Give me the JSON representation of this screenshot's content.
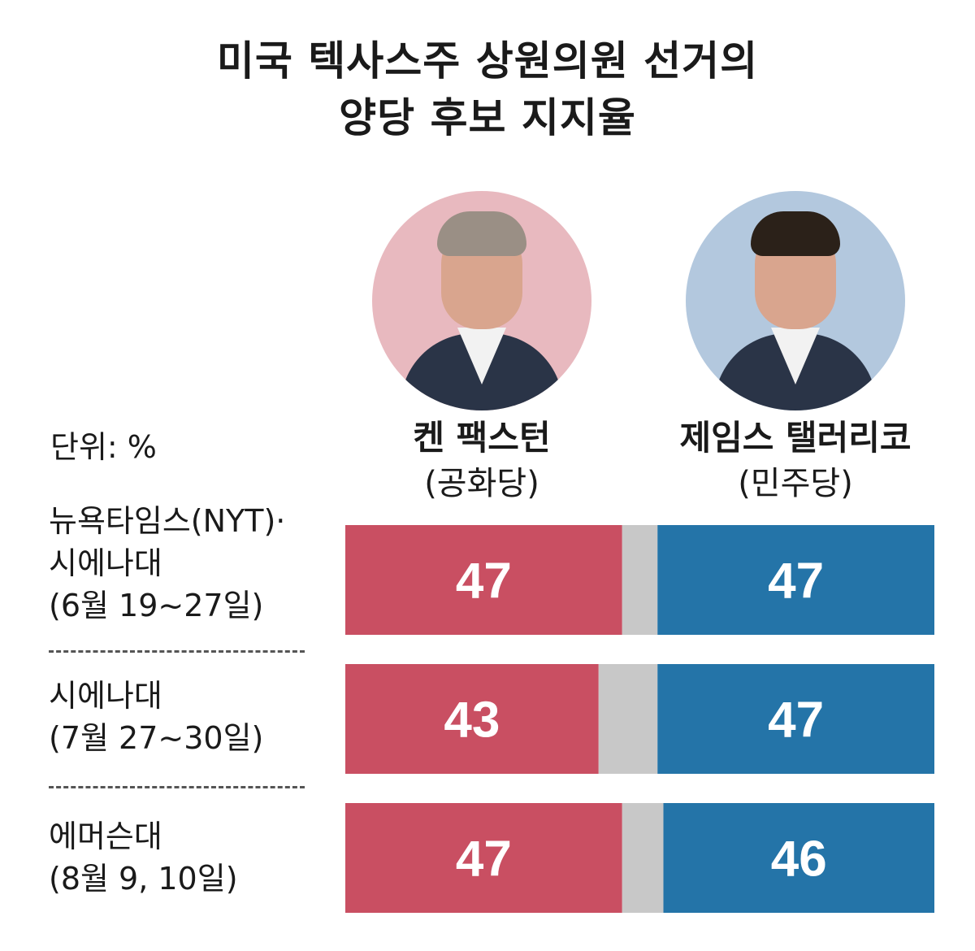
{
  "title_lines": [
    "미국 텍사스주 상원의원 선거의",
    "양당 후보 지지율"
  ],
  "unit_label": "단위: %",
  "candidates": [
    {
      "name": "켄 팩스턴",
      "party": "(공화당)",
      "circle_color": "#e8b9bf",
      "hair_color": "#9a8f85"
    },
    {
      "name": "제임스 탤러리코",
      "party": "(민주당)",
      "circle_color": "#b3c8de",
      "hair_color": "#2b2119"
    }
  ],
  "polls": [
    {
      "lines": [
        "뉴욕타임스(NYT)·",
        "시에나대",
        "(6월 19~27일)"
      ]
    },
    {
      "lines": [
        "시에나대",
        "(7월 27~30일)"
      ]
    },
    {
      "lines": [
        "에머슨대",
        "(8월 9, 10일)"
      ]
    }
  ],
  "colors": {
    "republican": "#c94f62",
    "democrat": "#2474a8",
    "other": "#c8c8c8"
  },
  "chart_data": {
    "type": "bar",
    "stacked": true,
    "orientation": "horizontal",
    "categories": [
      "뉴욕타임스(NYT)·시에나대 (6월 19~27일)",
      "시에나대 (7월 27~30일)",
      "에머슨대 (8월 9, 10일)"
    ],
    "series": [
      {
        "name": "켄 팩스턴 (공화당)",
        "values": [
          47,
          43,
          47
        ]
      },
      {
        "name": "",
        "values": [
          6,
          10,
          7
        ]
      },
      {
        "name": "제임스 탤러리코 (민주당)",
        "values": [
          47,
          47,
          46
        ]
      }
    ],
    "labels": [
      [
        "47",
        "47"
      ],
      [
        "43",
        "47"
      ],
      [
        "47",
        "46"
      ]
    ],
    "xlim": [
      0,
      100
    ]
  }
}
